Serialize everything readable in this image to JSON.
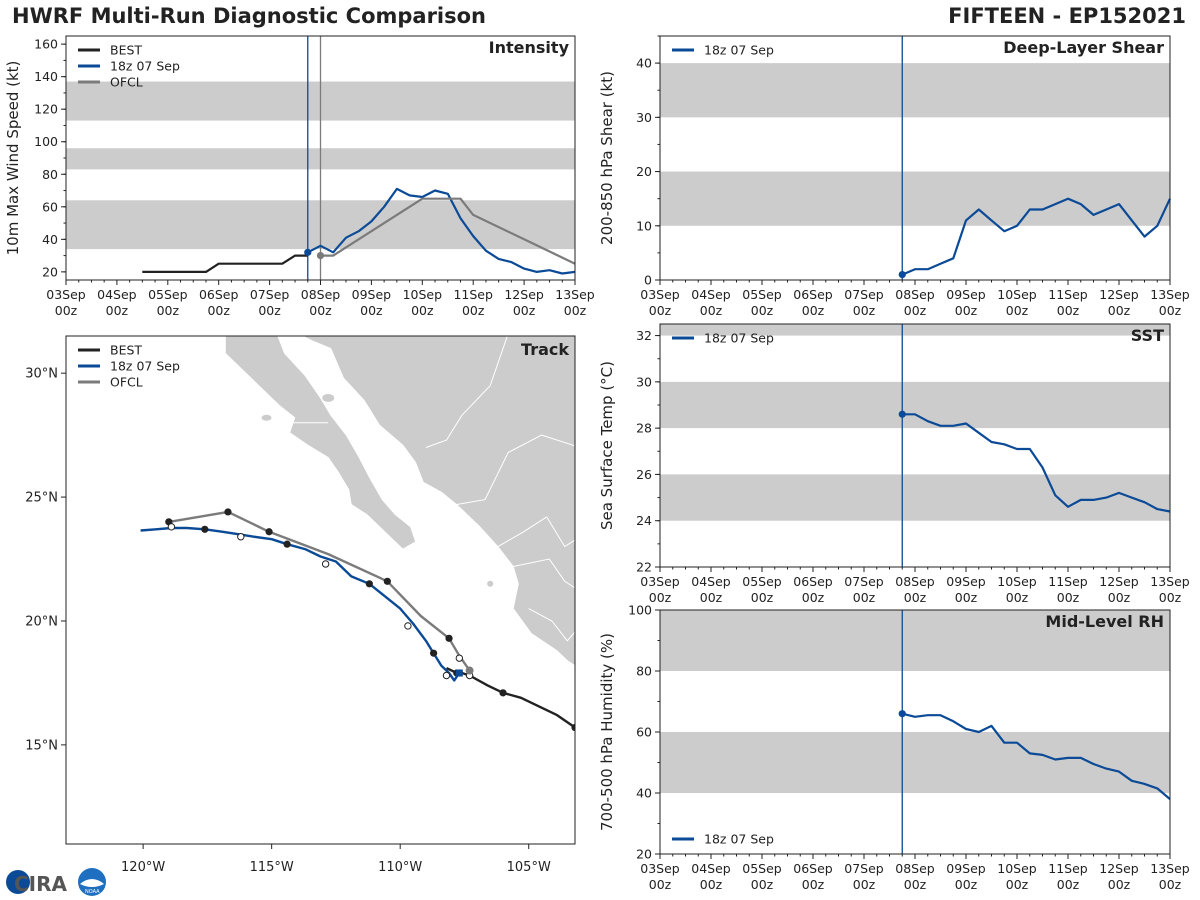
{
  "header": {
    "title_left": "HWRF Multi-Run Diagnostic Comparison",
    "title_right": "FIFTEEN - EP152021"
  },
  "logo": {
    "text": "CIRA",
    "subtext": "NOAA"
  },
  "colors": {
    "best": "#222222",
    "run": "#0b4a96",
    "ofcl": "#7b7b7b",
    "band": "#cccccc",
    "land": "#cccccc",
    "border": "#ffffff"
  },
  "time_axis": {
    "ticks": [
      0,
      1,
      2,
      3,
      4,
      5,
      6,
      7,
      8,
      9,
      10
    ],
    "labels": [
      [
        "03Sep",
        "00z"
      ],
      [
        "04Sep",
        "00z"
      ],
      [
        "05Sep",
        "00z"
      ],
      [
        "06Sep",
        "00z"
      ],
      [
        "07Sep",
        "00z"
      ],
      [
        "08Sep",
        "00z"
      ],
      [
        "09Sep",
        "00z"
      ],
      [
        "10Sep",
        "00z"
      ],
      [
        "11Sep",
        "00z"
      ],
      [
        "12Sep",
        "00z"
      ],
      [
        "13Sep",
        "00z"
      ]
    ],
    "run_init_day": 4.75
  },
  "chart_data": [
    {
      "type": "line",
      "id": "intensity",
      "title": "Intensity",
      "xlabel": "",
      "ylabel": "10m Max Wind Speed (kt)",
      "xlim": [
        0,
        10
      ],
      "ylim": [
        15,
        165
      ],
      "yticks": [
        20,
        40,
        60,
        80,
        100,
        120,
        140,
        160
      ],
      "bands": [
        [
          34,
          64
        ],
        [
          83,
          96
        ],
        [
          113,
          137
        ]
      ],
      "vlines": [
        {
          "x": 4.75,
          "series": "run"
        },
        {
          "x": 5.0,
          "series": "ofcl"
        }
      ],
      "legend": {
        "position": "top-left",
        "entries": [
          "BEST",
          "18z 07 Sep",
          "OFCL"
        ]
      },
      "series": [
        {
          "name": "BEST",
          "key": "best",
          "x": [
            1.5,
            1.75,
            2,
            2.25,
            2.5,
            2.75,
            3,
            3.25,
            3.5,
            3.75,
            4,
            4.25,
            4.5,
            4.75
          ],
          "y": [
            20,
            20,
            20,
            20,
            20,
            20,
            25,
            25,
            25,
            25,
            25,
            25,
            30,
            30
          ]
        },
        {
          "name": "18z 07 Sep",
          "key": "run",
          "x": [
            4.75,
            5,
            5.25,
            5.5,
            5.75,
            6,
            6.25,
            6.5,
            6.75,
            7,
            7.25,
            7.5,
            7.75,
            8,
            8.25,
            8.5,
            8.75,
            9,
            9.25,
            9.5,
            9.75,
            10
          ],
          "y": [
            32,
            36,
            32,
            41,
            45,
            51,
            60,
            71,
            67,
            66,
            70,
            68,
            53,
            42,
            33,
            28,
            26,
            22,
            20,
            21,
            19,
            20
          ],
          "markers": [
            0
          ]
        },
        {
          "name": "OFCL",
          "key": "ofcl",
          "x": [
            5,
            5.25,
            7,
            7.25,
            7.75,
            8,
            9,
            10
          ],
          "y": [
            30,
            30,
            65,
            65,
            65,
            55,
            40,
            25
          ],
          "markers": [
            0
          ]
        }
      ]
    },
    {
      "type": "line",
      "id": "shear",
      "title": "Deep-Layer Shear",
      "xlabel": "",
      "ylabel": "200-850 hPa Shear (kt)",
      "xlim": [
        0,
        10
      ],
      "ylim": [
        0,
        45
      ],
      "yticks": [
        0,
        10,
        20,
        30,
        40
      ],
      "bands": [
        [
          10,
          20
        ],
        [
          30,
          40
        ]
      ],
      "vlines": [
        {
          "x": 4.75,
          "series": "run"
        }
      ],
      "legend": {
        "position": "top-left",
        "entries": [
          "18z 07 Sep"
        ]
      },
      "series": [
        {
          "name": "18z 07 Sep",
          "key": "run",
          "x": [
            4.75,
            5,
            5.25,
            5.5,
            5.75,
            6,
            6.25,
            6.5,
            6.75,
            7,
            7.25,
            7.5,
            7.75,
            8,
            8.25,
            8.5,
            8.75,
            9,
            9.25,
            9.5,
            9.75,
            10
          ],
          "y": [
            1,
            2,
            2,
            3,
            4,
            11,
            13,
            11,
            9,
            10,
            13,
            13,
            14,
            15,
            14,
            12,
            13,
            14,
            11,
            8,
            10,
            15
          ],
          "markers": [
            0
          ]
        }
      ]
    },
    {
      "type": "line",
      "id": "sst",
      "title": "SST",
      "xlabel": "",
      "ylabel": "Sea Surface Temp (°C)",
      "xlim": [
        0,
        10
      ],
      "ylim": [
        22,
        32.5
      ],
      "yticks": [
        22,
        24,
        26,
        28,
        30,
        32
      ],
      "bands": [
        [
          24,
          26
        ],
        [
          28,
          30
        ],
        [
          32,
          32.5
        ]
      ],
      "vlines": [
        {
          "x": 4.75,
          "series": "run"
        }
      ],
      "legend": {
        "position": "top-left",
        "entries": [
          "18z 07 Sep"
        ]
      },
      "series": [
        {
          "name": "18z 07 Sep",
          "key": "run",
          "x": [
            4.75,
            5,
            5.25,
            5.5,
            5.75,
            6,
            6.25,
            6.5,
            6.75,
            7,
            7.25,
            7.5,
            7.75,
            8,
            8.25,
            8.5,
            8.75,
            9,
            9.25,
            9.5,
            9.75,
            10
          ],
          "y": [
            28.6,
            28.6,
            28.3,
            28.1,
            28.1,
            28.2,
            27.8,
            27.4,
            27.3,
            27.1,
            27.1,
            26.3,
            25.1,
            24.6,
            24.9,
            24.9,
            25.0,
            25.2,
            25.0,
            24.8,
            24.5,
            24.4
          ],
          "markers": [
            0
          ]
        }
      ]
    },
    {
      "type": "line",
      "id": "rh",
      "title": "Mid-Level RH",
      "xlabel": "",
      "ylabel": "700-500 hPa Humidity (%)",
      "xlim": [
        0,
        10
      ],
      "ylim": [
        20,
        100
      ],
      "yticks": [
        20,
        40,
        60,
        80,
        100
      ],
      "bands": [
        [
          40,
          60
        ],
        [
          80,
          100
        ]
      ],
      "vlines": [
        {
          "x": 4.75,
          "series": "run"
        }
      ],
      "legend": {
        "position": "bottom-left",
        "entries": [
          "18z 07 Sep"
        ]
      },
      "series": [
        {
          "name": "18z 07 Sep",
          "key": "run",
          "x": [
            4.75,
            5,
            5.25,
            5.5,
            5.75,
            6,
            6.25,
            6.5,
            6.75,
            7,
            7.25,
            7.5,
            7.75,
            8,
            8.25,
            8.5,
            8.75,
            9,
            9.25,
            9.5,
            9.75,
            10
          ],
          "y": [
            66,
            65,
            65.5,
            65.5,
            63.5,
            61,
            60,
            62,
            56.5,
            56.5,
            53,
            52.5,
            51,
            51.5,
            51.5,
            49.5,
            48,
            47,
            44,
            43,
            41.5,
            38
          ],
          "markers": [
            0
          ]
        }
      ]
    },
    {
      "type": "scatter",
      "id": "track",
      "title": "Track",
      "xlabel": "",
      "ylabel": "",
      "xlim": [
        -123,
        -103.2
      ],
      "ylim": [
        11,
        31.5
      ],
      "xticks": [
        -120,
        -115,
        -110,
        -105
      ],
      "xtick_labels": [
        "120°W",
        "115°W",
        "110°W",
        "105°W"
      ],
      "yticks": [
        15,
        20,
        25,
        30
      ],
      "ytick_labels": [
        "15°N",
        "20°N",
        "25°N",
        "30°N"
      ],
      "legend": {
        "position": "top-left",
        "entries": [
          "BEST",
          "18z 07 Sep",
          "OFCL"
        ]
      },
      "series": [
        {
          "name": "BEST",
          "key": "best",
          "lon": [
            -103.2,
            -103.9,
            -104.7,
            -105.3,
            -106.0,
            -106.6,
            -107.3,
            -107.6,
            -107.8,
            -108.2
          ],
          "lat": [
            15.7,
            16.2,
            16.6,
            16.9,
            17.1,
            17.4,
            17.8,
            17.9,
            17.9,
            18.1
          ],
          "markers": [
            0,
            4,
            6,
            8
          ]
        },
        {
          "name": "18z 07 Sep",
          "key": "run",
          "lon": [
            -107.7,
            -107.9,
            -108.1,
            -108.4,
            -108.7,
            -109.0,
            -109.5,
            -110.0,
            -110.6,
            -111.2,
            -111.9,
            -112.5,
            -113.1,
            -113.7,
            -114.4,
            -115.0,
            -115.7,
            -116.3,
            -116.9,
            -117.6,
            -118.3,
            -118.9,
            -119.5,
            -120.1
          ],
          "lat": [
            17.9,
            17.6,
            17.9,
            18.2,
            18.7,
            19.2,
            19.9,
            20.5,
            21.0,
            21.5,
            21.8,
            22.4,
            22.6,
            22.9,
            23.1,
            23.3,
            23.4,
            23.5,
            23.6,
            23.7,
            23.75,
            23.75,
            23.7,
            23.65
          ],
          "markers": [
            0,
            4,
            9,
            14,
            19
          ],
          "marker_style": "black"
        },
        {
          "name": "OFCL",
          "key": "ofcl",
          "lon": [
            -107.3,
            -107.7,
            -108.1,
            -109.2,
            -110.5,
            -112.8,
            -115.1,
            -116.7,
            -119.0
          ],
          "lat": [
            18.0,
            18.6,
            19.3,
            20.2,
            21.6,
            22.7,
            23.6,
            24.4,
            24.0
          ],
          "markers": [
            0,
            2,
            4,
            6,
            7,
            8
          ],
          "marker_style": "black"
        },
        {
          "name": "18z 07 Sep",
          "key": "run_hollow",
          "lon": [
            -107.3,
            -107.7,
            -108.2,
            -109.7,
            -112.9,
            -116.2,
            -118.9
          ],
          "lat": [
            17.8,
            18.5,
            17.8,
            19.8,
            22.3,
            23.4,
            23.8
          ],
          "markers": [
            0,
            1,
            2,
            3,
            4,
            5,
            6
          ],
          "marker_style": "hollow"
        }
      ]
    }
  ]
}
